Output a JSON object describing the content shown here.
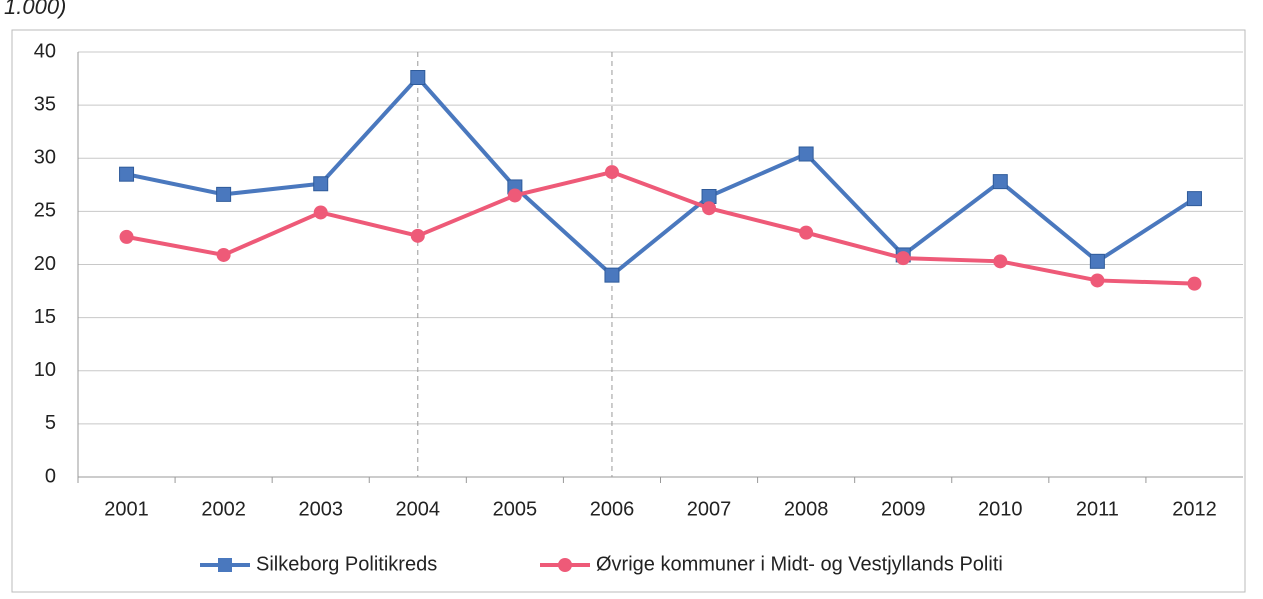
{
  "chart_data": {
    "type": "line",
    "top_text": "1.000)",
    "categories": [
      "2001",
      "2002",
      "2003",
      "2004",
      "2005",
      "2006",
      "2007",
      "2008",
      "2009",
      "2010",
      "2011",
      "2012"
    ],
    "series": [
      {
        "name": "Silkeborg Politikreds",
        "color": "#4a78be",
        "marker": "square",
        "values": [
          28.5,
          26.6,
          27.6,
          37.6,
          27.3,
          19.0,
          26.4,
          30.4,
          20.9,
          27.8,
          20.3,
          26.2
        ]
      },
      {
        "name": "Øvrige kommuner i Midt- og Vestjyllands Politi",
        "color": "#ee5a78",
        "marker": "circle",
        "values": [
          22.6,
          20.9,
          24.9,
          22.7,
          26.5,
          28.7,
          25.3,
          23.0,
          20.6,
          20.3,
          18.5,
          18.2
        ]
      }
    ],
    "reference_lines": [
      "2004",
      "2006"
    ],
    "ylim": [
      0,
      40
    ],
    "yticks": [
      0,
      5,
      10,
      15,
      20,
      25,
      30,
      35,
      40
    ],
    "grid": true,
    "legend": "bottom"
  }
}
